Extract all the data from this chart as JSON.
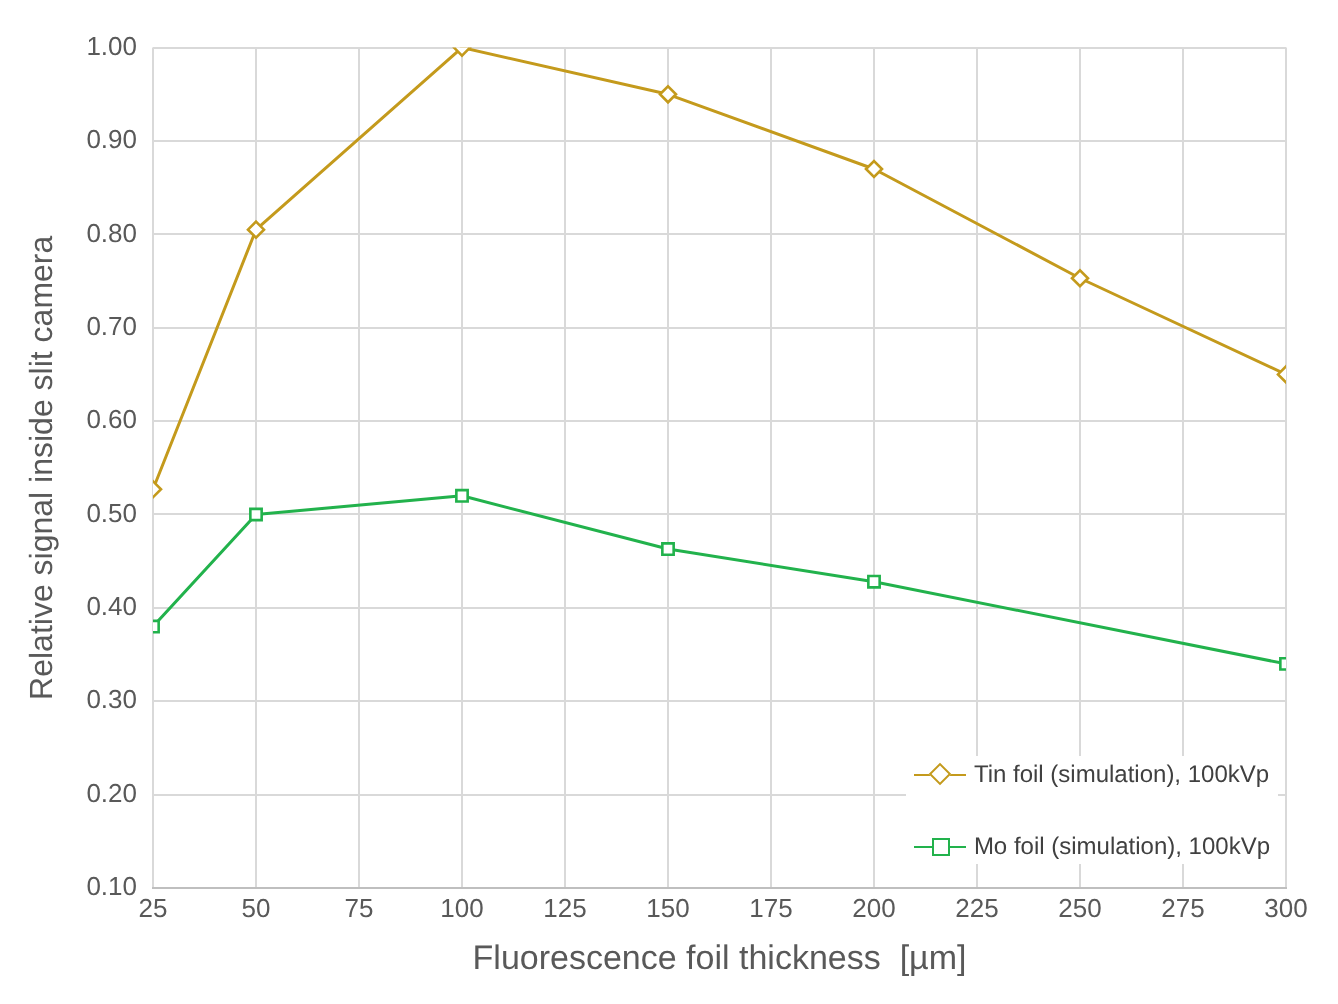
{
  "chart_data": {
    "type": "line",
    "xlabel": "Fluorescence foil thickness  [µm]",
    "ylabel": "Relative signal inside slit camera",
    "xlim": [
      25,
      300
    ],
    "xticks": [
      25,
      50,
      75,
      100,
      125,
      150,
      175,
      200,
      225,
      250,
      275,
      300
    ],
    "ylim": [
      0.1,
      1.0
    ],
    "yticks": [
      {
        "value": 0.1,
        "label": "0.10"
      },
      {
        "value": 0.2,
        "label": "0.20"
      },
      {
        "value": 0.3,
        "label": "0.30"
      },
      {
        "value": 0.4,
        "label": "0.40"
      },
      {
        "value": 0.5,
        "label": "0.50"
      },
      {
        "value": 0.6,
        "label": "0.60"
      },
      {
        "value": 0.7,
        "label": "0.70"
      },
      {
        "value": 0.8,
        "label": "0.80"
      },
      {
        "value": 0.9,
        "label": "0.90"
      },
      {
        "value": 1.0,
        "label": "1.00"
      }
    ],
    "grid": true,
    "legend": "bottom right",
    "line_style": "solid",
    "series": [
      {
        "name": "Tin foil (simulation), 100kVp",
        "color": "#c49a1c",
        "marker": "diamond",
        "x": [
          25,
          50,
          100,
          150,
          200,
          250,
          300
        ],
        "values": [
          0.527,
          0.805,
          1.0,
          0.95,
          0.87,
          0.753,
          0.65
        ]
      },
      {
        "name": "Mo foil (simulation), 100kVp",
        "color": "#22b24c",
        "marker": "square",
        "x": [
          25,
          50,
          100,
          150,
          200,
          300
        ],
        "values": [
          0.38,
          0.5,
          0.52,
          0.463,
          0.428,
          0.34
        ]
      }
    ]
  }
}
